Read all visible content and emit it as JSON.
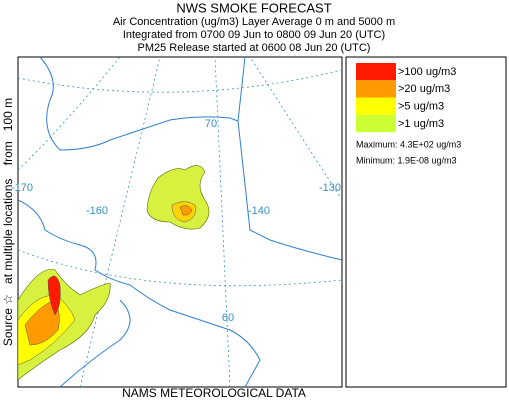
{
  "header": {
    "title": "NWS SMOKE FORECAST",
    "lines": [
      "Air Concentration (ug/m3) Layer Average    0 m and  5000 m",
      "Integrated from 0700 09 Jun to 0800 09 Jun 20 (UTC)",
      "PM25 Release started at 0600 08 Jun 20 (UTC)"
    ]
  },
  "side_label": "Source ☆   at multiple locations    from   100 m",
  "footer": "NAMS METEOROLOGICAL DATA",
  "map": {
    "graticule_labels": [
      "70",
      "60",
      "-170",
      "-160",
      "-140",
      "-130"
    ],
    "graticule_color": "#3a8fc4"
  },
  "legend": {
    "items": [
      {
        "label": ">100 ug/m3",
        "color": "#ff1a00"
      },
      {
        "label": ">20 ug/m3",
        "color": "#ff9a00"
      },
      {
        "label": ">5 ug/m3",
        "color": "#ffff00"
      },
      {
        "label": ">1 ug/m3",
        "color": "#ccff33"
      }
    ],
    "maximum": "Maximum: 4.3E+02 ug/m3",
    "minimum": "Minimum: 1.9E-08 ug/m3"
  }
}
